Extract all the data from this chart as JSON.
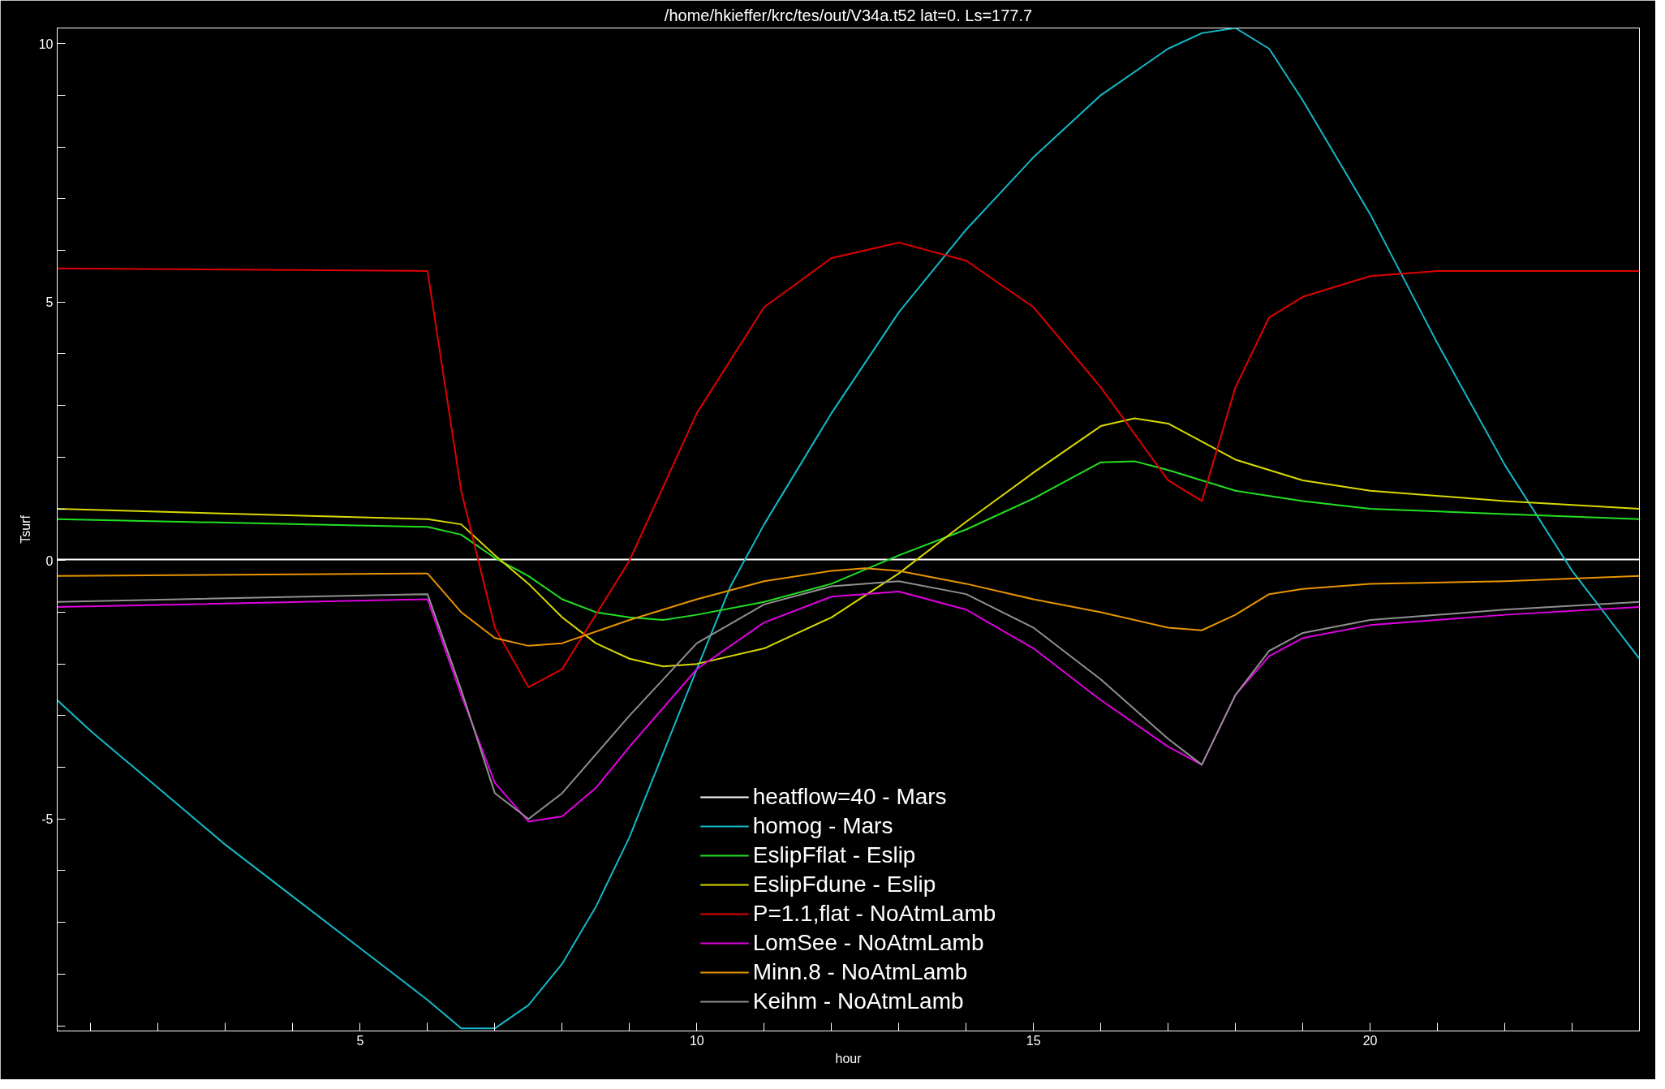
{
  "chart_data": {
    "type": "line",
    "title": "/home/hkieffer/krc/tes/out/V34a.t52 lat=0. Ls=177.7",
    "xlabel": "hour",
    "ylabel": "Tsurf",
    "xlim": [
      0.5,
      24
    ],
    "ylim": [
      -9.1,
      10.3
    ],
    "xticks": [
      {
        "value": 1,
        "label": null
      },
      {
        "value": 2,
        "label": null
      },
      {
        "value": 3,
        "label": null
      },
      {
        "value": 4,
        "label": null
      },
      5,
      {
        "value": 6,
        "label": null
      },
      {
        "value": 7,
        "label": null
      },
      {
        "value": 8,
        "label": null
      },
      {
        "value": 9,
        "label": null
      },
      10,
      {
        "value": 11,
        "label": null
      },
      {
        "value": 12,
        "label": null
      },
      {
        "value": 13,
        "label": null
      },
      {
        "value": 14,
        "label": null
      },
      15,
      {
        "value": 16,
        "label": null
      },
      {
        "value": 17,
        "label": null
      },
      {
        "value": 18,
        "label": null
      },
      {
        "value": 19,
        "label": null
      },
      20,
      {
        "value": 21,
        "label": null
      },
      {
        "value": 22,
        "label": null
      },
      {
        "value": 23,
        "label": null
      }
    ],
    "yticks": [
      {
        "value": -9,
        "label": null
      },
      {
        "value": -8,
        "label": null
      },
      {
        "value": -7,
        "label": null
      },
      {
        "value": -6,
        "label": null
      },
      -5,
      {
        "value": -4,
        "label": null
      },
      {
        "value": -3,
        "label": null
      },
      {
        "value": -2,
        "label": null
      },
      {
        "value": -1,
        "label": null
      },
      0,
      {
        "value": 1,
        "label": null
      },
      {
        "value": 2,
        "label": null
      },
      {
        "value": 3,
        "label": null
      },
      {
        "value": 4,
        "label": null
      },
      5,
      {
        "value": 6,
        "label": null
      },
      {
        "value": 7,
        "label": null
      },
      {
        "value": 8,
        "label": null
      },
      {
        "value": 9,
        "label": null
      },
      10
    ],
    "grid": false,
    "legend": "bottom",
    "marker": "none",
    "line_style": "solid",
    "series": [
      {
        "name": "heatflow=40 - Mars",
        "color": "#ffffff",
        "x": [
          0.5,
          6,
          12,
          18,
          24
        ],
        "values": [
          0.02,
          0.02,
          0.02,
          0.02,
          0.02
        ]
      },
      {
        "name": "homog - Mars",
        "color": "#14b8c8",
        "x": [
          0.5,
          1,
          2,
          3,
          4,
          5,
          6,
          6.5,
          7,
          7.5,
          8,
          8.5,
          9,
          10,
          10.5,
          11,
          12,
          13,
          14,
          15,
          16,
          17,
          17.5,
          18,
          18.5,
          19,
          20,
          21,
          22,
          23,
          24
        ],
        "values": [
          -2.7,
          -3.3,
          -4.4,
          -5.5,
          -6.5,
          -7.5,
          -8.5,
          -9.05,
          -9.05,
          -8.6,
          -7.8,
          -6.7,
          -5.35,
          -2.1,
          -0.5,
          0.7,
          2.85,
          4.8,
          6.4,
          7.8,
          9.0,
          9.9,
          10.2,
          10.3,
          9.9,
          8.9,
          6.7,
          4.2,
          1.85,
          -0.2,
          -1.9
        ]
      },
      {
        "name": "EslipFflat - Eslip",
        "color": "#22e022",
        "x": [
          0.5,
          6,
          6.5,
          7,
          7.5,
          8,
          8.5,
          9,
          9.5,
          10,
          11,
          12,
          13,
          14,
          15,
          16,
          16.5,
          17,
          18,
          19,
          20,
          22,
          24
        ],
        "values": [
          0.8,
          0.65,
          0.5,
          0.05,
          -0.3,
          -0.75,
          -1.0,
          -1.1,
          -1.15,
          -1.05,
          -0.8,
          -0.45,
          0.1,
          0.6,
          1.2,
          1.9,
          1.92,
          1.75,
          1.35,
          1.15,
          1.0,
          0.9,
          0.8
        ]
      },
      {
        "name": "EslipFdune - Eslip",
        "color": "#d8d800",
        "x": [
          0.5,
          6,
          6.5,
          7,
          7.5,
          8,
          8.5,
          9,
          9.5,
          10,
          11,
          12,
          13,
          14,
          15,
          16,
          16.5,
          17,
          17.5,
          18,
          19,
          20,
          22,
          24
        ],
        "values": [
          1.0,
          0.8,
          0.7,
          0.1,
          -0.45,
          -1.1,
          -1.6,
          -1.9,
          -2.05,
          -2.0,
          -1.7,
          -1.1,
          -0.25,
          0.75,
          1.7,
          2.6,
          2.75,
          2.65,
          2.3,
          1.95,
          1.55,
          1.35,
          1.15,
          1.0
        ]
      },
      {
        "name": "P=1.1,flat - NoAtmLamb",
        "color": "#e00000",
        "x": [
          0.5,
          6,
          6.5,
          7,
          7.5,
          8,
          9,
          10,
          11,
          12,
          13,
          14,
          15,
          16,
          17,
          17.5,
          18,
          18.5,
          19,
          20,
          21,
          22,
          24
        ],
        "values": [
          5.65,
          5.6,
          1.35,
          -1.3,
          -2.45,
          -2.1,
          0,
          2.85,
          4.9,
          5.85,
          6.15,
          5.8,
          4.9,
          3.35,
          1.55,
          1.15,
          3.35,
          4.7,
          5.1,
          5.5,
          5.6,
          5.6,
          5.6
        ]
      },
      {
        "name": "LomSee - NoAtmLamb",
        "color": "#e000e0",
        "x": [
          0.5,
          6,
          6.5,
          7,
          7.5,
          8,
          8.5,
          9,
          10,
          11,
          12,
          13,
          14,
          15,
          16,
          17,
          17.5,
          18,
          18.5,
          19,
          20,
          22,
          24
        ],
        "values": [
          -0.9,
          -0.75,
          -2.6,
          -4.3,
          -5.05,
          -4.95,
          -4.4,
          -3.6,
          -2.1,
          -1.2,
          -0.7,
          -0.6,
          -0.95,
          -1.7,
          -2.7,
          -3.6,
          -3.95,
          -2.6,
          -1.85,
          -1.5,
          -1.25,
          -1.05,
          -0.9
        ]
      },
      {
        "name": "Minn.8 - NoAtmLamb",
        "color": "#e89400",
        "x": [
          0.5,
          6,
          6.5,
          7,
          7.5,
          8,
          9,
          10,
          11,
          12,
          12.5,
          13,
          14,
          15,
          16,
          17,
          17.5,
          18,
          18.5,
          19,
          20,
          22,
          24
        ],
        "values": [
          -0.3,
          -0.25,
          -1.0,
          -1.5,
          -1.65,
          -1.6,
          -1.15,
          -0.75,
          -0.4,
          -0.2,
          -0.15,
          -0.2,
          -0.45,
          -0.75,
          -1.0,
          -1.3,
          -1.35,
          -1.05,
          -0.65,
          -0.55,
          -0.45,
          -0.4,
          -0.3
        ]
      },
      {
        "name": "Keihm - NoAtmLamb",
        "color": "#909090",
        "x": [
          0.5,
          6,
          6.5,
          7,
          7.5,
          8,
          9,
          10,
          11,
          12,
          13,
          14,
          15,
          16,
          17,
          17.5,
          18,
          18.5,
          19,
          20,
          22,
          24
        ],
        "values": [
          -0.8,
          -0.65,
          -2.5,
          -4.5,
          -5.0,
          -4.5,
          -3.0,
          -1.6,
          -0.85,
          -0.5,
          -0.4,
          -0.65,
          -1.3,
          -2.3,
          -3.45,
          -3.95,
          -2.6,
          -1.75,
          -1.4,
          -1.15,
          -0.95,
          -0.8
        ]
      }
    ]
  }
}
